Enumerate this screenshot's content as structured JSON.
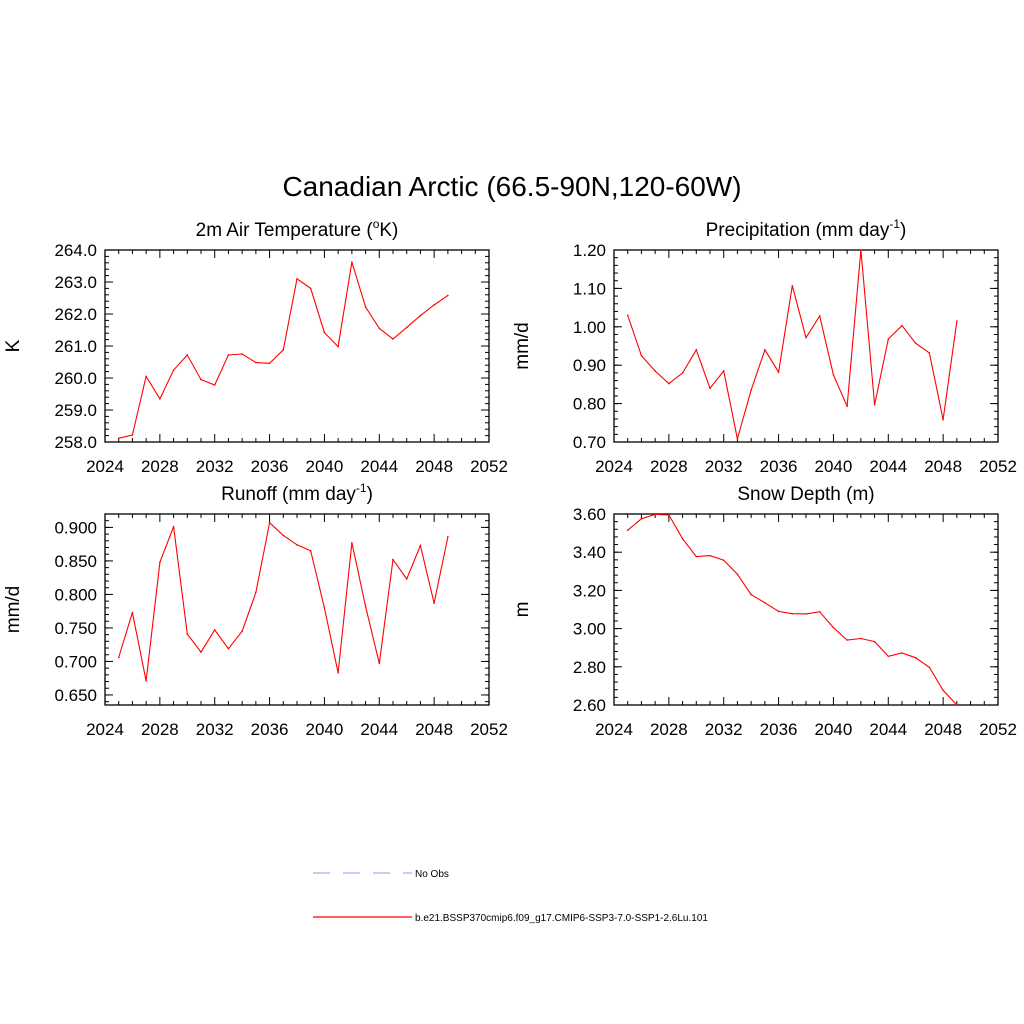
{
  "figure": {
    "title": "Canadian Arctic (66.5-90N,120-60W)"
  },
  "chart_data": [
    {
      "id": "temp",
      "type": "line",
      "title": {
        "main": "2m Air Temperature (",
        "sup": "o",
        "post": "K)"
      },
      "ylabel": "K",
      "xlim": [
        2024,
        2052
      ],
      "ylim": [
        258.0,
        264.0
      ],
      "xticks": [
        "2024",
        "2028",
        "2032",
        "2036",
        "2040",
        "2044",
        "2048",
        "2052"
      ],
      "yticks": [
        "258.0",
        "259.0",
        "260.0",
        "261.0",
        "262.0",
        "263.0",
        "264.0"
      ],
      "x": [
        2025,
        2026,
        2027,
        2028,
        2029,
        2030,
        2031,
        2032,
        2033,
        2034,
        2035,
        2036,
        2037,
        2038,
        2039,
        2040,
        2041,
        2042,
        2043,
        2044,
        2045,
        2046,
        2047,
        2048,
        2049
      ],
      "series": [
        {
          "name": "b.e21.BSSP370cmip6.f09_g17.CMIP6-SSP3-7.0-SSP1-2.6Lu.101",
          "values": [
            258.12,
            258.22,
            260.05,
            259.35,
            260.25,
            260.72,
            259.95,
            259.78,
            260.72,
            260.75,
            260.48,
            260.46,
            260.88,
            263.1,
            262.8,
            261.42,
            260.98,
            263.62,
            262.22,
            261.55,
            261.22,
            261.58,
            261.95,
            262.28,
            262.58
          ]
        }
      ]
    },
    {
      "id": "precip",
      "type": "line",
      "title": {
        "main": "Precipitation (mm day",
        "sup": "-1",
        "post": ")"
      },
      "ylabel": "mm/d",
      "xlim": [
        2024,
        2052
      ],
      "ylim": [
        0.7,
        1.2
      ],
      "xticks": [
        "2024",
        "2028",
        "2032",
        "2036",
        "2040",
        "2044",
        "2048",
        "2052"
      ],
      "yticks": [
        "0.70",
        "0.80",
        "0.90",
        "1.00",
        "1.10",
        "1.20"
      ],
      "x": [
        2025,
        2026,
        2027,
        2028,
        2029,
        2030,
        2031,
        2032,
        2033,
        2034,
        2035,
        2036,
        2037,
        2038,
        2039,
        2040,
        2041,
        2042,
        2043,
        2044,
        2045,
        2046,
        2047,
        2048,
        2049
      ],
      "series": [
        {
          "name": "b.e21.BSSP370cmip6.f09_g17.CMIP6-SSP3-7.0-SSP1-2.6Lu.101",
          "values": [
            1.03,
            0.925,
            0.885,
            0.852,
            0.88,
            0.94,
            0.84,
            0.885,
            0.708,
            0.835,
            0.94,
            0.882,
            1.107,
            0.972,
            1.028,
            0.875,
            0.793,
            1.2,
            0.797,
            0.968,
            1.003,
            0.957,
            0.932,
            0.758,
            1.015
          ]
        }
      ]
    },
    {
      "id": "runoff",
      "type": "line",
      "title": {
        "main": "Runoff (mm day",
        "sup": "-1",
        "post": ")"
      },
      "ylabel": "mm/d",
      "xlim": [
        2024,
        2052
      ],
      "ylim": [
        0.635,
        0.92
      ],
      "xticks": [
        "2024",
        "2028",
        "2032",
        "2036",
        "2040",
        "2044",
        "2048",
        "2052"
      ],
      "yticks": [
        "0.650",
        "0.700",
        "0.750",
        "0.800",
        "0.850",
        "0.900"
      ],
      "ytick_values": [
        0.65,
        0.7,
        0.75,
        0.8,
        0.85,
        0.9
      ],
      "x": [
        2025,
        2026,
        2027,
        2028,
        2029,
        2030,
        2031,
        2032,
        2033,
        2034,
        2035,
        2036,
        2037,
        2038,
        2039,
        2040,
        2041,
        2042,
        2043,
        2044,
        2045,
        2046,
        2047,
        2048,
        2049
      ],
      "series": [
        {
          "name": "b.e21.BSSP370cmip6.f09_g17.CMIP6-SSP3-7.0-SSP1-2.6Lu.101",
          "values": [
            0.706,
            0.773,
            0.671,
            0.848,
            0.901,
            0.741,
            0.714,
            0.747,
            0.719,
            0.745,
            0.803,
            0.907,
            0.888,
            0.874,
            0.865,
            0.78,
            0.683,
            0.877,
            0.782,
            0.697,
            0.852,
            0.823,
            0.873,
            0.787,
            0.886
          ]
        }
      ]
    },
    {
      "id": "snow",
      "type": "line",
      "title": {
        "main": "Snow Depth (m)",
        "sup": "",
        "post": ""
      },
      "ylabel": "m",
      "xlim": [
        2024,
        2052
      ],
      "ylim": [
        2.6,
        3.6
      ],
      "xticks": [
        "2024",
        "2028",
        "2032",
        "2036",
        "2040",
        "2044",
        "2048",
        "2052"
      ],
      "yticks": [
        "2.60",
        "2.80",
        "3.00",
        "3.20",
        "3.40",
        "3.60"
      ],
      "x": [
        2025,
        2026,
        2027,
        2028,
        2029,
        2030,
        2031,
        2032,
        2033,
        2034,
        2035,
        2036,
        2037,
        2038,
        2039,
        2040,
        2041,
        2042,
        2043,
        2044,
        2045,
        2046,
        2047,
        2048,
        2049
      ],
      "series": [
        {
          "name": "b.e21.BSSP370cmip6.f09_g17.CMIP6-SSP3-7.0-SSP1-2.6Lu.101",
          "values": [
            3.515,
            3.575,
            3.598,
            3.595,
            3.47,
            3.377,
            3.382,
            3.358,
            3.285,
            3.178,
            3.135,
            3.09,
            3.078,
            3.077,
            3.088,
            3.005,
            2.94,
            2.948,
            2.932,
            2.855,
            2.872,
            2.847,
            2.797,
            2.677,
            2.6
          ]
        }
      ]
    }
  ],
  "legend": {
    "items": [
      {
        "label": "No Obs",
        "color": "#aaaaee",
        "dash": true
      },
      {
        "label": "b.e21.BSSP370cmip6.f09_g17.CMIP6-SSP3-7.0-SSP1-2.6Lu.101",
        "color": "#ff0000",
        "dash": false
      }
    ]
  },
  "colors": {
    "line": "#ff0000",
    "obs": "#aaaaee",
    "axis": "#000000"
  }
}
